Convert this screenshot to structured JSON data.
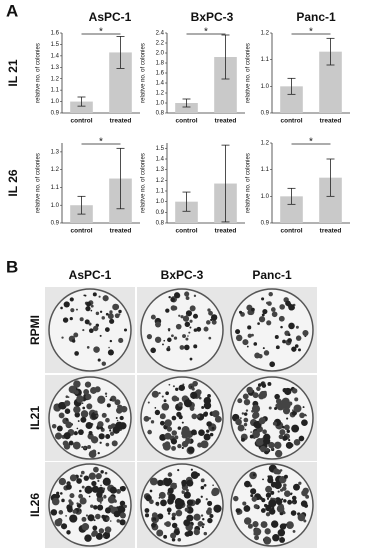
{
  "panel_a": {
    "label": "A",
    "columns": [
      "AsPC-1",
      "BxPC-3",
      "Panc-1"
    ],
    "rows": [
      "IL 21",
      "IL 26"
    ]
  },
  "panel_b": {
    "label": "B",
    "columns": [
      "AsPC-1",
      "BxPC-3",
      "Panc-1"
    ],
    "rows": [
      "RPMI",
      "IL21",
      "IL26"
    ]
  },
  "chart_data": [
    {
      "type": "bar",
      "y_label": "relative no. of colonies",
      "categories": [
        "control",
        "treated"
      ],
      "values": [
        1.0,
        1.43
      ],
      "errors": [
        0.04,
        0.14
      ],
      "color": "#c9c9c9",
      "annotation": "*",
      "ylim": [
        0.9,
        1.6
      ],
      "yticks": [
        0.9,
        {
          "value": 1,
          "label": "1.0"
        },
        1.1,
        1.2,
        1.3,
        1.4,
        1.5,
        1.6
      ]
    },
    {
      "type": "bar",
      "y_label": "relative no. of colonies",
      "categories": [
        "control",
        "treated"
      ],
      "values": [
        1.0,
        1.92
      ],
      "errors": [
        0.08,
        0.44
      ],
      "color": "#c9c9c9",
      "annotation": "*",
      "ylim": [
        0.8,
        2.4
      ],
      "yticks": [
        0.8,
        {
          "value": 1,
          "label": "1.0"
        },
        1.2,
        1.4,
        1.6,
        1.8,
        {
          "value": 2,
          "label": "2.0"
        },
        2.2,
        2.4
      ]
    },
    {
      "type": "bar",
      "y_label": "relative no. of colonies",
      "categories": [
        "control",
        "treated"
      ],
      "values": [
        1.0,
        1.13
      ],
      "errors": [
        0.03,
        0.05
      ],
      "color": "#c9c9c9",
      "annotation": "*",
      "ylim": [
        0.9,
        1.2
      ],
      "yticks": [
        0.9,
        {
          "value": 1,
          "label": "1.0"
        },
        1.1,
        1.2
      ]
    },
    {
      "type": "bar",
      "y_label": "relative no. of colonies",
      "categories": [
        "control",
        "treated"
      ],
      "values": [
        1.0,
        1.15
      ],
      "errors": [
        0.05,
        0.17
      ],
      "color": "#c9c9c9",
      "annotation": "*",
      "ylim": [
        0.9,
        1.35
      ],
      "yticks": [
        0.9,
        {
          "value": 1,
          "label": "1.0"
        },
        1.1,
        1.2,
        1.3
      ]
    },
    {
      "type": "bar",
      "y_label": "relative no. of colonies",
      "categories": [
        "control",
        "treated"
      ],
      "values": [
        1.0,
        1.17
      ],
      "errors": [
        0.09,
        0.36
      ],
      "color": "#c9c9c9",
      "ylim": [
        0.8,
        1.55
      ],
      "yticks": [
        0.8,
        0.9,
        {
          "value": 1,
          "label": "1.0"
        },
        1.1,
        1.2,
        1.3,
        1.4,
        1.5
      ]
    },
    {
      "type": "bar",
      "y_label": "relative no. of colonies",
      "categories": [
        "control",
        "treated"
      ],
      "values": [
        1.0,
        1.07
      ],
      "errors": [
        0.03,
        0.07
      ],
      "color": "#c9c9c9",
      "annotation": "*",
      "ylim": [
        0.9,
        1.2
      ],
      "yticks": [
        0.9,
        {
          "value": 1,
          "label": "1.0"
        },
        1.1,
        1.2
      ]
    }
  ]
}
